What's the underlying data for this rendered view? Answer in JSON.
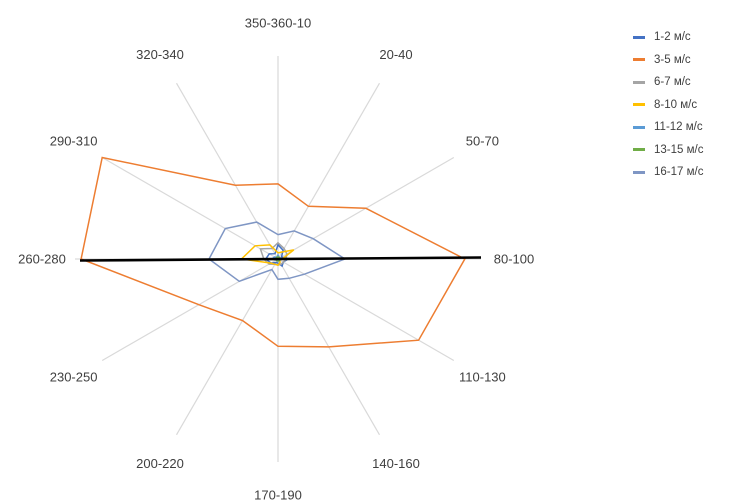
{
  "chart_data": {
    "type": "radar",
    "categories": [
      "350-360-10",
      "20-40",
      "50-70",
      "80-100",
      "110-130",
      "140-160",
      "170-190",
      "200-220",
      "230-250",
      "260-280",
      "290-310",
      "320-340"
    ],
    "rmax": 10,
    "grid": true,
    "legend_position": "right",
    "series": [
      {
        "name": "1-2 м/с",
        "color": "#4472c4",
        "values": [
          0.7,
          0.5,
          0.2,
          0.5,
          0.3,
          0.4,
          0.2,
          0.2,
          0.4,
          0.6,
          0.5,
          0.3
        ]
      },
      {
        "name": "3-5 м/с",
        "color": "#ed7d31",
        "values": [
          3.7,
          3.0,
          5.0,
          9.2,
          8.0,
          5.0,
          4.3,
          3.5,
          4.5,
          9.7,
          10.0,
          4.2
        ]
      },
      {
        "name": "6-7 м/с",
        "color": "#a5a5a5",
        "values": [
          0.8,
          0.6,
          0.5,
          0.4,
          0.3,
          0.3,
          0.3,
          0.3,
          0.5,
          0.7,
          1.0,
          0.6
        ]
      },
      {
        "name": "8-10 м/с",
        "color": "#ffc000",
        "values": [
          0.3,
          0.4,
          0.9,
          0.2,
          0.1,
          0.2,
          0.3,
          0.3,
          0.4,
          1.8,
          1.3,
          0.8
        ]
      },
      {
        "name": "11-12 м/с",
        "color": "#5b9bd5",
        "values": [
          0.2,
          0.1,
          0.1,
          0.1,
          0.1,
          0.1,
          0.1,
          0.1,
          0.1,
          0.3,
          0.2,
          0.1
        ]
      },
      {
        "name": "13-15 м/с",
        "color": "#70ad47",
        "values": [
          0.1,
          0.1,
          0.1,
          0.1,
          0.1,
          0.1,
          0.1,
          0.1,
          0.1,
          0.1,
          0.1,
          0.1
        ]
      },
      {
        "name": "16-17 м/с",
        "color": "#7f96c4",
        "values": [
          1.2,
          1.6,
          2.0,
          3.3,
          1.5,
          1.1,
          1.0,
          0.6,
          2.2,
          3.4,
          3.0,
          2.1
        ]
      }
    ]
  }
}
